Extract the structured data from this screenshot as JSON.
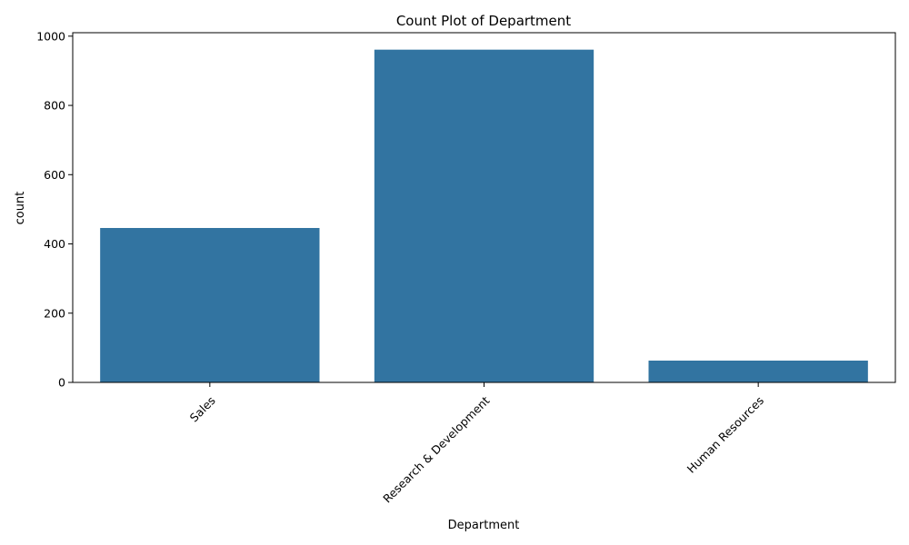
{
  "chart_data": {
    "type": "bar",
    "title": "Count Plot of Department",
    "xlabel": "Department",
    "ylabel": "count",
    "categories": [
      "Sales",
      "Research & Development",
      "Human Resources"
    ],
    "values": [
      446,
      961,
      63
    ],
    "ylim": [
      0,
      1010
    ],
    "yticks": [
      0,
      200,
      400,
      600,
      800,
      1000
    ],
    "xtick_rotation_deg": 45,
    "grid": false,
    "legend": "none",
    "bar_color": "#3274a1"
  }
}
